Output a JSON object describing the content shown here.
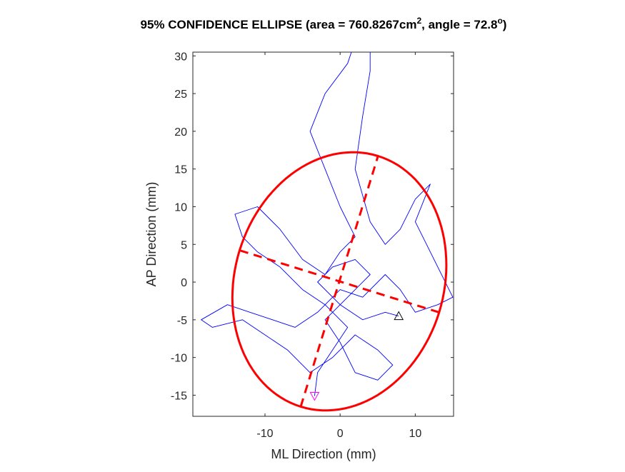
{
  "chart_data": {
    "type": "line",
    "title": [
      "95% CONFIDENCE ELLIPSE (area = 760.8267cm",
      "2",
      ", angle = 72.8",
      "o",
      ")"
    ],
    "xlabel": "ML Direction (mm)",
    "ylabel": "AP Direction (mm)",
    "xlim": [
      -19.6,
      15.1
    ],
    "ylim": [
      -17.8,
      30.5
    ],
    "xticks": [
      -10,
      0,
      10
    ],
    "yticks": [
      -15,
      -10,
      -5,
      0,
      5,
      10,
      15,
      20,
      25,
      30
    ],
    "series": [
      {
        "color": "#0000ff",
        "x": [
          -3.4,
          -3,
          -1,
          1,
          -2,
          -5,
          -8,
          -11,
          -13,
          -14,
          -11,
          -8,
          -5,
          -2,
          0,
          2,
          0,
          -2,
          -4,
          -2,
          1,
          2,
          4,
          4,
          3,
          2,
          4,
          6,
          8,
          10,
          12,
          10,
          12,
          15,
          13,
          10,
          8,
          6,
          3,
          0,
          -3,
          -6,
          -9,
          -12,
          -15,
          -18.5,
          -17,
          -13,
          -10,
          -7,
          -4,
          -1,
          2,
          5,
          7,
          5,
          2,
          0,
          -2,
          1,
          4,
          2,
          -1,
          -3,
          0,
          3,
          6,
          7.8
        ],
        "values": [
          -15.1,
          -12,
          -9,
          -6,
          -3,
          -1,
          2,
          4,
          6,
          9,
          10,
          7,
          3,
          1,
          4,
          6,
          10,
          15,
          20,
          25,
          29,
          32,
          32,
          28,
          22,
          15,
          8,
          5,
          7,
          11,
          13,
          8,
          4,
          -2,
          -3,
          -4,
          -1,
          1,
          -2,
          -1,
          -4,
          -6,
          -5,
          -4,
          -3,
          -5,
          -6,
          -5,
          -7,
          -9,
          -12,
          -10,
          -7,
          -9,
          -11,
          -13,
          -12,
          -8,
          -5,
          -2,
          1,
          3,
          2,
          0,
          -3,
          -5,
          -4,
          -4.5
        ]
      }
    ],
    "start_marker": {
      "x": -3.4,
      "y": -15.1,
      "color": "#ff00ff"
    },
    "end_marker": {
      "x": 7.8,
      "y": -4.5,
      "color": "#000000"
    },
    "ellipse": {
      "center_x": -0.1,
      "center_y": 0.1,
      "semi_major": 17.4,
      "semi_minor": 13.9,
      "angle_deg": 72.8,
      "color": "#ff0000"
    }
  }
}
